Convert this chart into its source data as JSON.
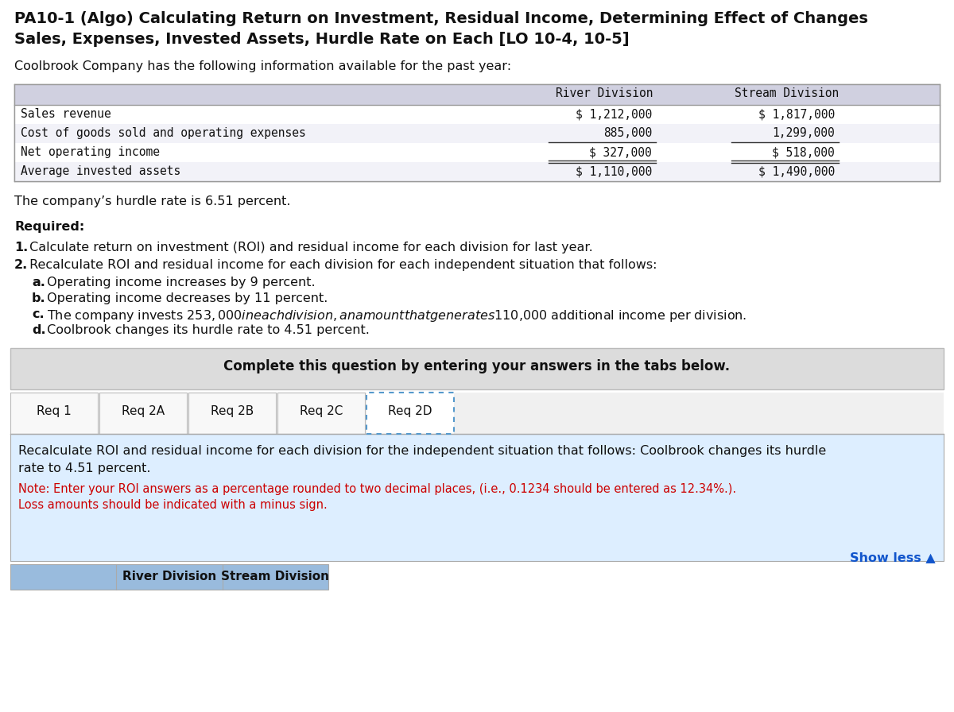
{
  "title_line1": "PA10-1 (Algo) Calculating Return on Investment, Residual Income, Determining Effect of Changes",
  "title_line2": "Sales, Expenses, Invested Assets, Hurdle Rate on Each [LO 10-4, 10-5]",
  "intro_text": "Coolbrook Company has the following information available for the past year:",
  "table_rows": [
    [
      "Sales revenue",
      "$ 1,212,000",
      "$ 1,817,000"
    ],
    [
      "Cost of goods sold and operating expenses",
      "885,000",
      "1,299,000"
    ],
    [
      "Net operating income",
      "$ 327,000",
      "$ 518,000"
    ],
    [
      "Average invested assets",
      "$ 1,110,000",
      "$ 1,490,000"
    ]
  ],
  "hurdle_text": "The company’s hurdle rate is 6.51 percent.",
  "required_label": "Required:",
  "complete_box_text": "Complete this question by entering your answers in the tabs below.",
  "tabs": [
    "Req 1",
    "Req 2A",
    "Req 2B",
    "Req 2C",
    "Req 2D"
  ],
  "active_tab": "Req 2D",
  "content_text_line1": "Recalculate ROI and residual income for each division for the independent situation that follows: Coolbrook changes its hurdle",
  "content_text_line2": "rate to 4.51 percent.",
  "note_text_line1": "Note: Enter your ROI answers as a percentage rounded to two decimal places, (i.e., 0.1234 should be entered as 12.34%.).",
  "note_text_line2": "Loss amounts should be indicated with a minus sign.",
  "show_less_text": "Show less ▲",
  "bg_color": "#ffffff",
  "table_header_bg": "#d0d0e0",
  "complete_box_bg": "#dcdcdc",
  "content_area_bg": "#ddeeff",
  "note_color": "#cc0000",
  "show_less_color": "#1155cc",
  "bottom_header_bg": "#99bbdd",
  "title_fontsize": 14,
  "body_fontsize": 11.5,
  "tab_fontsize": 11,
  "mono_fontsize": 10.5
}
